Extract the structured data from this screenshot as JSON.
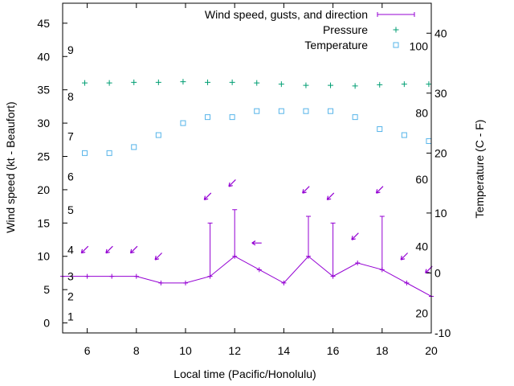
{
  "chart_data": {
    "type": "line",
    "title": "",
    "xlabel": "Local time (Pacific/Honolulu)",
    "ylabel_left": "Wind speed (kt - Beaufort)",
    "ylabel_right": "Temperature (C - F)",
    "xlim": [
      5,
      20
    ],
    "ylim_left": [
      -1.5,
      48
    ],
    "ylim_right": [
      -10,
      45
    ],
    "x_ticks": [
      "6",
      "8",
      "10",
      "12",
      "14",
      "16",
      "18",
      "20"
    ],
    "y_left_ticks": [
      "0",
      "5",
      "10",
      "15",
      "20",
      "25",
      "30",
      "35",
      "40",
      "45"
    ],
    "y_right_ticks": [
      "-10",
      "0",
      "10",
      "20",
      "30",
      "40"
    ],
    "beaufort_labels": [
      {
        "label": "1",
        "kt": 1
      },
      {
        "label": "2",
        "kt": 4
      },
      {
        "label": "3",
        "kt": 7
      },
      {
        "label": "4",
        "kt": 11
      },
      {
        "label": "5",
        "kt": 17
      },
      {
        "label": "6",
        "kt": 22
      },
      {
        "label": "7",
        "kt": 28
      },
      {
        "label": "8",
        "kt": 34
      },
      {
        "label": "9",
        "kt": 41
      }
    ],
    "fahrenheit_labels": [
      {
        "label": "20",
        "c": -6.7
      },
      {
        "label": "40",
        "c": 4.4
      },
      {
        "label": "60",
        "c": 15.6
      },
      {
        "label": "80",
        "c": 26.7
      },
      {
        "label": "100",
        "c": 37.8
      }
    ],
    "legend": {
      "wind": "Wind speed, gusts, and direction",
      "pressure": "Pressure",
      "temperature": "Temperature"
    },
    "colors": {
      "wind": "#9400d3",
      "pressure": "#009e73",
      "temperature": "#56b4e9",
      "axis": "#000000"
    },
    "series": [
      {
        "name": "Wind speed",
        "x": [
          5,
          6,
          7,
          8,
          9,
          10,
          11,
          12,
          13,
          14,
          15,
          16,
          17,
          18,
          19,
          20
        ],
        "values": [
          7,
          7,
          7,
          7,
          6,
          6,
          7,
          10,
          8,
          6,
          10,
          7,
          9,
          8,
          6,
          4
        ],
        "gusts": [
          null,
          null,
          null,
          null,
          null,
          null,
          15,
          17,
          null,
          null,
          16,
          15,
          null,
          16,
          null,
          null
        ]
      },
      {
        "name": "Pressure",
        "x": [
          5.9,
          6.9,
          7.9,
          8.9,
          9.9,
          10.9,
          11.9,
          12.9,
          13.9,
          14.9,
          15.9,
          16.9,
          17.9,
          18.9,
          19.9
        ],
        "values": [
          31.7,
          31.7,
          31.8,
          31.8,
          31.9,
          31.8,
          31.8,
          31.7,
          31.5,
          31.3,
          31.3,
          31.2,
          31.4,
          31.5,
          31.5
        ]
      },
      {
        "name": "Temperature",
        "x": [
          5.9,
          6.9,
          7.9,
          8.9,
          9.9,
          10.9,
          11.9,
          12.9,
          13.9,
          14.9,
          15.9,
          16.9,
          17.9,
          18.9,
          19.9
        ],
        "values": [
          20,
          20,
          21,
          23,
          25,
          26,
          26,
          27,
          27,
          27,
          27,
          26,
          24,
          23,
          22
        ]
      },
      {
        "name": "Wind direction arrows",
        "x": [
          5.9,
          6.9,
          7.9,
          8.9,
          10.9,
          11.9,
          12.9,
          14.9,
          15.9,
          16.9,
          17.9,
          18.9,
          19.9
        ],
        "values": [
          11,
          11,
          11,
          10,
          19,
          21,
          12,
          20,
          19,
          13,
          20,
          10,
          8
        ],
        "direction": [
          "NE",
          "NE",
          "NE",
          "NE",
          "NE",
          "NE",
          "E",
          "NE",
          "NE",
          "NE",
          "NE",
          "NE",
          "NE"
        ]
      }
    ]
  }
}
